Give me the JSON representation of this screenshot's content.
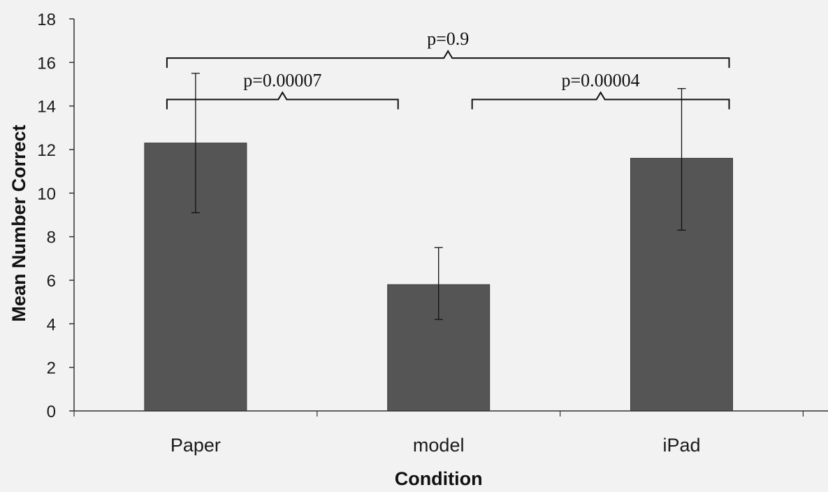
{
  "chart_data": {
    "type": "bar",
    "categories": [
      "Paper",
      "model",
      "iPad"
    ],
    "values": [
      12.3,
      5.8,
      11.6
    ],
    "error_bars": [
      {
        "lower": 9.1,
        "upper": 15.5
      },
      {
        "lower": 4.2,
        "upper": 7.5
      },
      {
        "lower": 8.3,
        "upper": 14.8
      }
    ],
    "xlabel": "Condition",
    "ylabel": "Mean Number Correct",
    "ylim": [
      0,
      18
    ],
    "yticks": [
      "0",
      "2",
      "4",
      "6",
      "8",
      "10",
      "12",
      "14",
      "16",
      "18"
    ],
    "grid": false,
    "bar_color": "#555555",
    "annotations": [
      {
        "text": "p=0.9",
        "from": "Paper",
        "to": "iPad",
        "level": 16.2
      },
      {
        "text": "p=0.00007",
        "from": "Paper",
        "to": "model",
        "level": 14.3
      },
      {
        "text": "p=0.00004",
        "from": "model",
        "to": "iPad",
        "level": 14.3
      }
    ]
  }
}
